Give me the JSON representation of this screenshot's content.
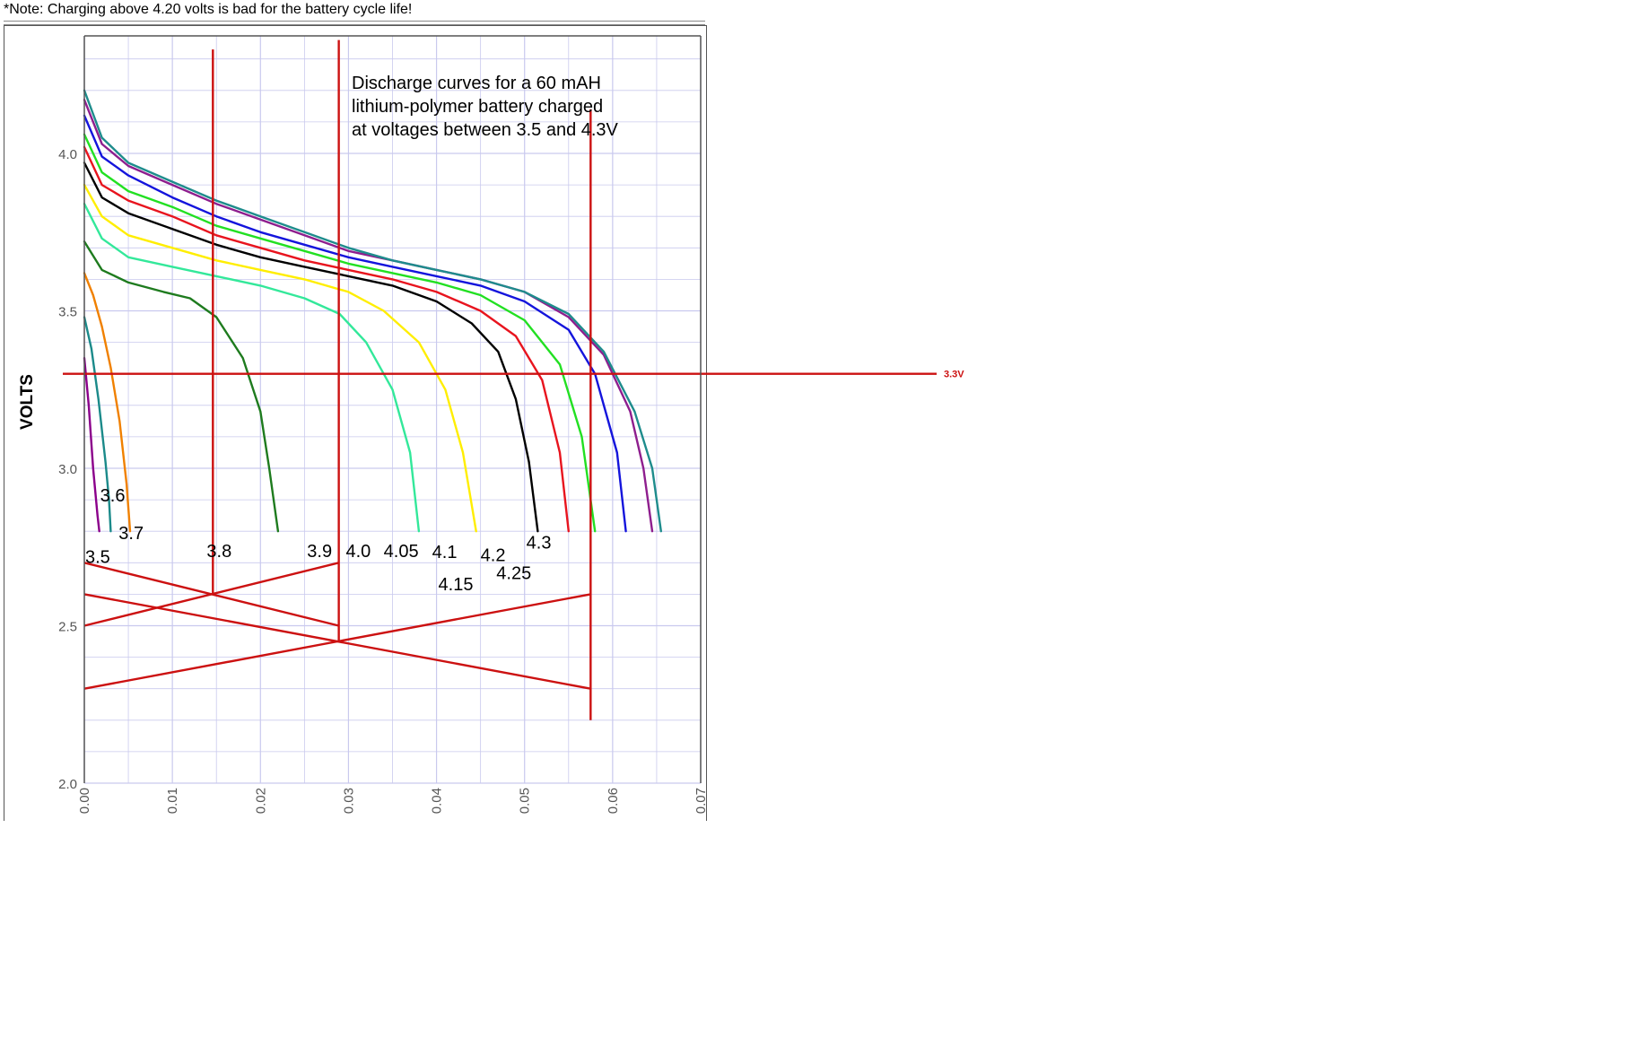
{
  "page": {
    "note": "*Note: Charging above 4.20 volts is bad for the battery cycle life!"
  },
  "chart_data": {
    "type": "line",
    "title": "Discharge curves for a 60 mAH lithium-polymer battery charged at voltages between 3.5 and 4.3V",
    "title_lines": [
      "Discharge curves for a 60 mAH",
      "lithium-polymer battery charged",
      "at voltages between 3.5 and 4.3V"
    ],
    "ylabel": "VOLTS",
    "xlabel": "",
    "xlim": [
      0,
      0.07
    ],
    "ylim": [
      2.0,
      4.35
    ],
    "x_ticks": [
      "0.00",
      "0.01",
      "0.02",
      "0.03",
      "0.04",
      "0.05",
      "0.06",
      "0.07"
    ],
    "y_ticks": [
      "2.0",
      "2.5",
      "3.0",
      "3.5",
      "4.0"
    ],
    "grid": true,
    "series": [
      {
        "name": "3.5",
        "color": "#8B008B",
        "x": [
          0,
          0.0005,
          0.001,
          0.0015,
          0.0017
        ],
        "y": [
          3.35,
          3.2,
          3.0,
          2.85,
          2.8
        ]
      },
      {
        "name": "3.6",
        "color": "#1B8A8A",
        "x": [
          0,
          0.0008,
          0.0016,
          0.0024,
          0.0028,
          0.003
        ],
        "y": [
          3.48,
          3.38,
          3.22,
          3.02,
          2.9,
          2.8
        ]
      },
      {
        "name": "3.7",
        "color": "#F08000",
        "x": [
          0,
          0.001,
          0.002,
          0.003,
          0.004,
          0.0048,
          0.0052
        ],
        "y": [
          3.62,
          3.55,
          3.45,
          3.32,
          3.15,
          2.95,
          2.8
        ]
      },
      {
        "name": "3.8",
        "color": "#1E7B1E",
        "x": [
          0,
          0.002,
          0.005,
          0.009,
          0.012,
          0.015,
          0.018,
          0.02,
          0.021,
          0.022
        ],
        "y": [
          3.72,
          3.63,
          3.59,
          3.56,
          3.54,
          3.48,
          3.35,
          3.18,
          3.0,
          2.8
        ]
      },
      {
        "name": "3.9",
        "color": "#33E89A",
        "x": [
          0,
          0.002,
          0.005,
          0.01,
          0.015,
          0.02,
          0.025,
          0.029,
          0.032,
          0.035,
          0.037,
          0.038
        ],
        "y": [
          3.84,
          3.73,
          3.67,
          3.64,
          3.61,
          3.58,
          3.54,
          3.49,
          3.4,
          3.25,
          3.05,
          2.8
        ]
      },
      {
        "name": "4.0",
        "color": "#FFEE00",
        "x": [
          0,
          0.002,
          0.005,
          0.01,
          0.015,
          0.02,
          0.025,
          0.03,
          0.034,
          0.038,
          0.041,
          0.043,
          0.0445
        ],
        "y": [
          3.9,
          3.8,
          3.74,
          3.7,
          3.66,
          3.63,
          3.6,
          3.56,
          3.5,
          3.4,
          3.25,
          3.05,
          2.8
        ]
      },
      {
        "name": "4.05",
        "color": "#000000",
        "x": [
          0,
          0.002,
          0.005,
          0.01,
          0.015,
          0.02,
          0.025,
          0.03,
          0.035,
          0.04,
          0.044,
          0.047,
          0.049,
          0.0505,
          0.0515
        ],
        "y": [
          3.97,
          3.86,
          3.81,
          3.76,
          3.71,
          3.67,
          3.64,
          3.61,
          3.58,
          3.53,
          3.46,
          3.37,
          3.22,
          3.02,
          2.8
        ]
      },
      {
        "name": "4.1",
        "color": "#E8141E",
        "x": [
          0,
          0.002,
          0.005,
          0.01,
          0.015,
          0.02,
          0.025,
          0.03,
          0.035,
          0.04,
          0.045,
          0.049,
          0.052,
          0.054,
          0.055
        ],
        "y": [
          4.02,
          3.9,
          3.85,
          3.8,
          3.74,
          3.7,
          3.66,
          3.63,
          3.6,
          3.56,
          3.5,
          3.42,
          3.28,
          3.05,
          2.8
        ]
      },
      {
        "name": "4.15",
        "color": "#22E022",
        "x": [
          0,
          0.002,
          0.005,
          0.01,
          0.015,
          0.02,
          0.025,
          0.03,
          0.035,
          0.04,
          0.045,
          0.05,
          0.054,
          0.0565,
          0.058
        ],
        "y": [
          4.06,
          3.94,
          3.88,
          3.83,
          3.77,
          3.73,
          3.69,
          3.65,
          3.62,
          3.59,
          3.55,
          3.47,
          3.33,
          3.1,
          2.8
        ]
      },
      {
        "name": "4.2",
        "color": "#1414DC",
        "x": [
          0,
          0.002,
          0.005,
          0.01,
          0.015,
          0.02,
          0.025,
          0.03,
          0.035,
          0.04,
          0.045,
          0.05,
          0.055,
          0.058,
          0.0605,
          0.0615
        ],
        "y": [
          4.12,
          3.99,
          3.93,
          3.86,
          3.8,
          3.75,
          3.71,
          3.67,
          3.64,
          3.61,
          3.58,
          3.53,
          3.44,
          3.3,
          3.05,
          2.8
        ]
      },
      {
        "name": "4.25",
        "color": "#8E1E8E",
        "x": [
          0,
          0.002,
          0.005,
          0.01,
          0.015,
          0.02,
          0.025,
          0.03,
          0.035,
          0.04,
          0.045,
          0.05,
          0.055,
          0.059,
          0.062,
          0.0635,
          0.0645
        ],
        "y": [
          4.17,
          4.03,
          3.96,
          3.9,
          3.84,
          3.79,
          3.74,
          3.69,
          3.66,
          3.63,
          3.6,
          3.56,
          3.48,
          3.36,
          3.18,
          3.0,
          2.8
        ]
      },
      {
        "name": "4.3",
        "color": "#1E8C8C",
        "x": [
          0,
          0.002,
          0.005,
          0.01,
          0.015,
          0.02,
          0.025,
          0.03,
          0.035,
          0.04,
          0.045,
          0.05,
          0.055,
          0.059,
          0.0625,
          0.0645,
          0.0655
        ],
        "y": [
          4.2,
          4.05,
          3.97,
          3.91,
          3.85,
          3.8,
          3.75,
          3.7,
          3.66,
          3.63,
          3.6,
          3.56,
          3.49,
          3.37,
          3.18,
          3.0,
          2.8
        ]
      }
    ],
    "curve_labels": [
      {
        "text": "3.5",
        "x": 0.0001,
        "y": 2.7
      },
      {
        "text": "3.6",
        "x": 0.0018,
        "y": 2.895
      },
      {
        "text": "3.7",
        "x": 0.0039,
        "y": 2.775
      },
      {
        "text": "3.8",
        "x": 0.0139,
        "y": 2.718
      },
      {
        "text": "3.9",
        "x": 0.0253,
        "y": 2.718
      },
      {
        "text": "4.0",
        "x": 0.0297,
        "y": 2.718
      },
      {
        "text": "4.05",
        "x": 0.034,
        "y": 2.718
      },
      {
        "text": "4.1",
        "x": 0.0395,
        "y": 2.715
      },
      {
        "text": "4.15",
        "x": 0.0402,
        "y": 2.612
      },
      {
        "text": "4.2",
        "x": 0.045,
        "y": 2.705
      },
      {
        "text": "4.25",
        "x": 0.0468,
        "y": 2.648
      },
      {
        "text": "4.3",
        "x": 0.0502,
        "y": 2.745
      }
    ],
    "annotation": {
      "label": "3.3V",
      "color": "#CC1111",
      "y": 3.3,
      "vertical_lines": [
        {
          "x": 0.0146,
          "y_top": 4.33,
          "y_bottom": 2.6
        },
        {
          "x": 0.0289,
          "y_top": 4.36,
          "y_bottom": 2.45
        },
        {
          "x": 0.0575,
          "y_top": 4.14,
          "y_bottom": 2.2
        }
      ],
      "diagonal_lines": [
        {
          "x1": 0,
          "y1": 2.7,
          "x2": 0.0289,
          "y2": 2.5
        },
        {
          "x1": 0,
          "y1": 2.5,
          "x2": 0.0289,
          "y2": 2.7
        },
        {
          "x1": 0,
          "y1": 2.6,
          "x2": 0.0575,
          "y2": 2.3
        },
        {
          "x1": 0,
          "y1": 2.3,
          "x2": 0.0575,
          "y2": 2.6
        }
      ]
    },
    "colors": {
      "grid": "#C9C9EE",
      "axis": "#555555",
      "annotation": "#CC1111"
    }
  }
}
